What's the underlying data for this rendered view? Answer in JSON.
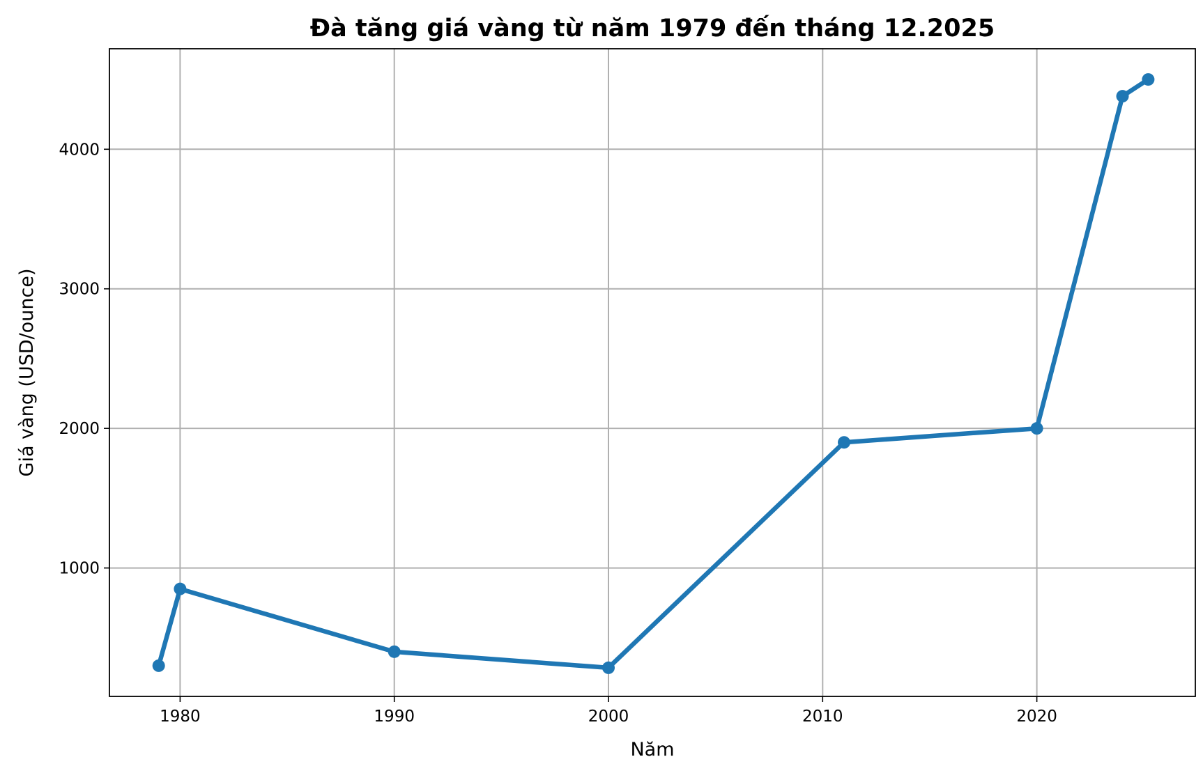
{
  "chart_data": {
    "type": "line",
    "title": "Đà tăng giá vàng từ năm 1979 đến tháng 12.2025",
    "xlabel": "Năm",
    "ylabel": "Giá vàng (USD/ounce)",
    "x": [
      1979,
      1980,
      1990,
      2000,
      2011,
      2020,
      2024,
      2025.2
    ],
    "values": [
      300,
      850,
      400,
      285,
      1900,
      2000,
      4380,
      4500
    ],
    "xlim": [
      1976.7,
      2027.4
    ],
    "ylim": [
      80,
      4720
    ],
    "xticks": [
      1980,
      1990,
      2000,
      2010,
      2020
    ],
    "yticks": [
      1000,
      2000,
      3000,
      4000
    ],
    "xtick_labels": [
      "1980",
      "1990",
      "2000",
      "2010",
      "2020"
    ],
    "ytick_labels": [
      "1000",
      "2000",
      "3000",
      "4000"
    ],
    "grid": true,
    "line_color": "#1f77b4",
    "grid_color": "#b0b0b0"
  }
}
